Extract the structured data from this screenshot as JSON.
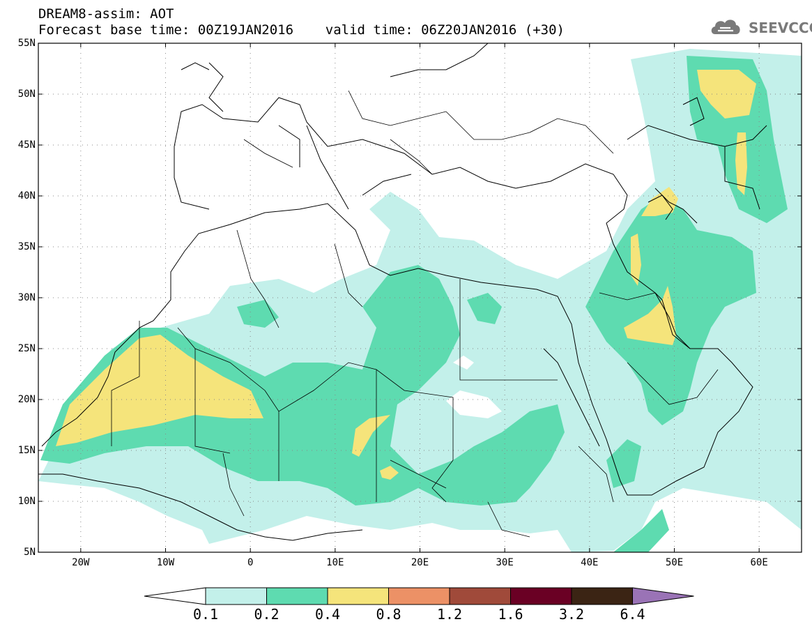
{
  "header": {
    "line1": "DREAM8-assim: AOT",
    "line2": "Forecast base time: 00Z19JAN2016    valid time: 06Z20JAN2016 (+30)"
  },
  "logo": {
    "text": "SEEVCCC",
    "icon": "cloud-icon"
  },
  "map": {
    "lat_labels": [
      "55N",
      "50N",
      "45N",
      "40N",
      "35N",
      "30N",
      "25N",
      "20N",
      "15N",
      "10N",
      "5N"
    ],
    "lon_labels": [
      "20W",
      "10W",
      "0",
      "10E",
      "20E",
      "30E",
      "40E",
      "50E",
      "60E"
    ],
    "lat_range": [
      5,
      55
    ],
    "lon_range": [
      -25,
      65
    ],
    "grid": "dotted",
    "colors": {
      "land_outline": "#000000",
      "level_0_1": "#c3f0ea",
      "level_0_2": "#5edbb0",
      "level_0_4": "#f5e47b"
    }
  },
  "colorbar": {
    "labels": [
      "0.1",
      "0.2",
      "0.4",
      "0.8",
      "1.2",
      "1.6",
      "3.2",
      "6.4"
    ],
    "colors": [
      "#ffffff",
      "#c3f0ea",
      "#5edbb0",
      "#f5e47b",
      "#ec9166",
      "#a04a3a",
      "#6a0024",
      "#3b2414",
      "#9a73b6"
    ]
  }
}
